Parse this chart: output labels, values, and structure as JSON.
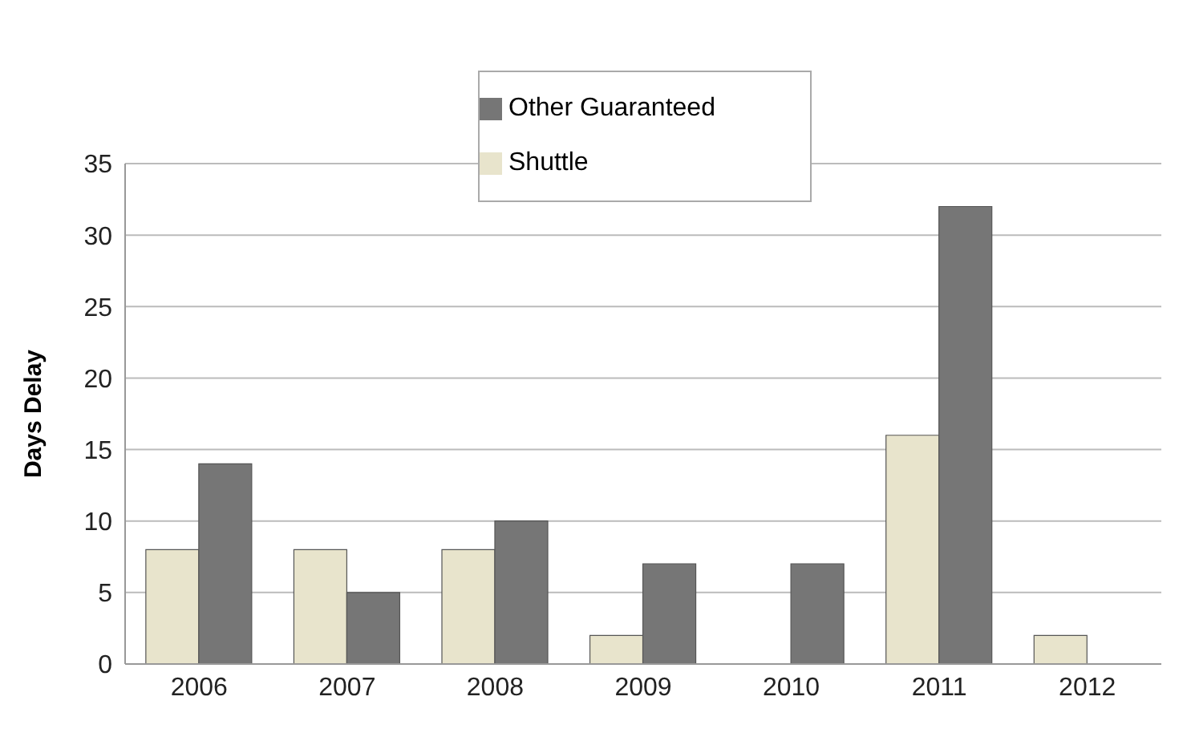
{
  "chart_data": {
    "type": "bar",
    "ylabel": "Days Delay",
    "categories": [
      "2006",
      "2007",
      "2008",
      "2009",
      "2010",
      "2011",
      "2012"
    ],
    "series": [
      {
        "name": "Shuttle",
        "color": "#e8e4cc",
        "values": [
          8,
          8,
          8,
          2,
          0,
          16,
          2
        ]
      },
      {
        "name": "Other Guaranteed",
        "color": "#767676",
        "values": [
          14,
          5,
          10,
          7,
          7,
          32,
          0
        ]
      }
    ],
    "ylim": [
      0,
      35
    ],
    "yticks": [
      0,
      5,
      10,
      15,
      20,
      25,
      30,
      35
    ],
    "grid": "y",
    "legend": "top"
  }
}
